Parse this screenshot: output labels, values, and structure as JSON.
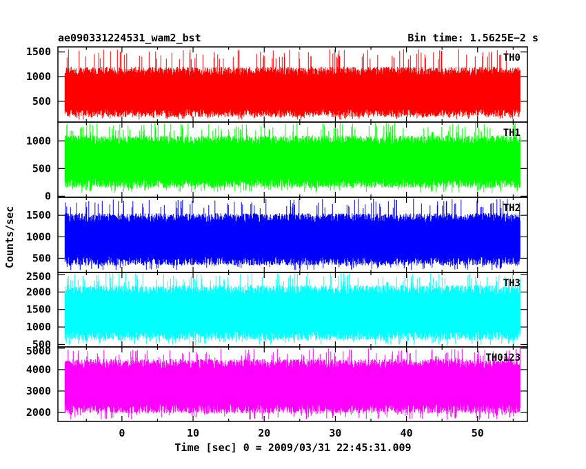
{
  "header": {
    "left": "ae090331224531_wam2_bst",
    "right": "Bin time: 1.5625E−2 s"
  },
  "chart_data": {
    "type": "line",
    "title": "ae090331224531_wam2_bst",
    "subtitle": "Bin time: 1.5625E−2 s",
    "xlabel": "Time [sec] 0 = 2009/03/31 22:45:31.009",
    "ylabel": "Counts/sec",
    "xlim": [
      -9.0,
      57.0
    ],
    "x_range_data": [
      -8.0,
      56.0
    ],
    "x_ticks": [
      0,
      10,
      20,
      30,
      40,
      50
    ],
    "grid": false,
    "legend": "none",
    "panels": [
      {
        "name": "TH0",
        "color": "#ff0000",
        "ylim": [
          80,
          1600
        ],
        "y_ticks": [
          500,
          1000,
          1500
        ],
        "typical_low": 180,
        "typical_high": 1200,
        "min": 130,
        "max": 1560
      },
      {
        "name": "TH1",
        "color": "#00ff00",
        "ylim": [
          -20,
          1340
        ],
        "y_ticks": [
          0,
          500,
          1000
        ],
        "typical_low": 150,
        "typical_high": 1100,
        "min": 60,
        "max": 1330
      },
      {
        "name": "TH2",
        "color": "#0000ff",
        "ylim": [
          170,
          1920
        ],
        "y_ticks": [
          500,
          1000,
          1500
        ],
        "typical_low": 330,
        "typical_high": 1550,
        "min": 220,
        "max": 1900
      },
      {
        "name": "TH3",
        "color": "#00ffff",
        "ylim": [
          430,
          2560
        ],
        "y_ticks": [
          500,
          1000,
          1500,
          2000,
          2500
        ],
        "typical_low": 620,
        "typical_high": 2200,
        "min": 480,
        "max": 2560
      },
      {
        "name": "TH0123",
        "color": "#ff00ff",
        "ylim": [
          1580,
          5060
        ],
        "y_ticks": [
          2000,
          3000,
          4000,
          5000
        ],
        "typical_low": 1950,
        "typical_high": 4500,
        "min": 1650,
        "max": 5000
      }
    ]
  }
}
